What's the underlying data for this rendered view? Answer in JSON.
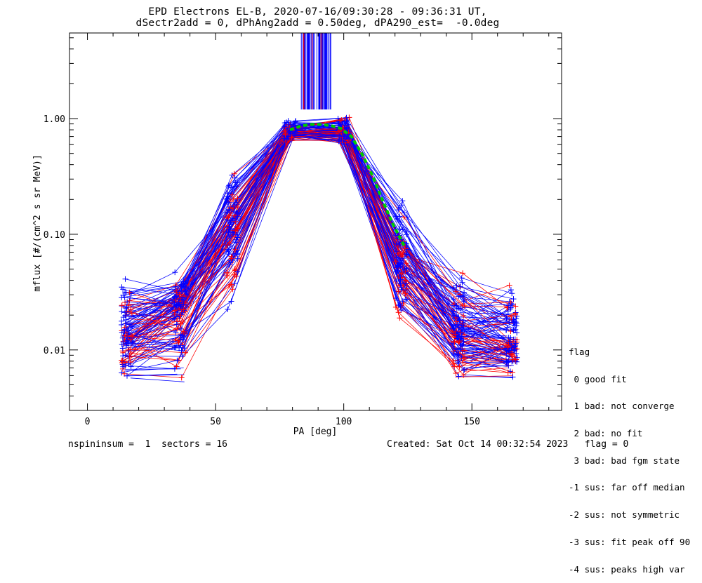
{
  "title_line1": "EPD Electrons EL-B, 2020-07-16/09:30:28 - 09:36:31 UT,",
  "title_line2": "dSectr2add = 0, dPhAng2add = 0.50deg, dPA290_est=  -0.0deg",
  "footer_left": "nspininsum =  1  sectors = 16",
  "footer_right": "Created: Sat Oct 14 00:32:54 2023   flag = 0",
  "legend": {
    "title": "flag",
    "items": [
      " 0 good fit",
      " 1 bad: not converge",
      " 2 bad: no fit",
      " 3 bad: bad fgm state",
      "-1 sus: far off median",
      "-2 sus: not symmetric",
      "-3 sus: fit peak off 90",
      "-4 sus: peaks high var"
    ]
  },
  "colors": {
    "series_a": "#0000ff",
    "series_b": "#ff0000",
    "fit": "#00cc00",
    "axes": "#000000"
  },
  "chart_data": {
    "type": "line",
    "xlabel": "PA [deg]",
    "ylabel": "mflux [#/(cm^2 s sr MeV)]",
    "xlim": [
      -7,
      185
    ],
    "ylim": [
      0.003,
      5.5
    ],
    "yscale": "log",
    "xticks": [
      0,
      50,
      100,
      150
    ],
    "xtick_labels": [
      "0",
      "50",
      "100",
      "150"
    ],
    "yticks": [
      0.01,
      0.1,
      1.0
    ],
    "ytick_labels": [
      "0.01",
      "0.10",
      "1.00"
    ],
    "grid": false,
    "pa_bins": [
      15.5,
      36,
      56.5,
      79,
      100,
      122.5,
      145,
      165.5
    ],
    "profile_median": [
      0.013,
      0.024,
      0.13,
      0.78,
      0.76,
      0.055,
      0.012,
      0.012
    ],
    "profile_low": [
      0.0055,
      0.0055,
      0.022,
      0.62,
      0.6,
      0.016,
      0.0055,
      0.0055
    ],
    "profile_high": [
      0.046,
      0.05,
      0.37,
      0.98,
      1.05,
      0.26,
      0.053,
      0.04
    ],
    "fit_curve": {
      "name": "",
      "x": [
        79,
        83,
        87,
        91,
        95,
        99,
        103,
        107,
        111,
        115,
        119,
        123.5
      ],
      "y": [
        0.8,
        0.86,
        0.89,
        0.89,
        0.87,
        0.82,
        0.7,
        0.5,
        0.33,
        0.2,
        0.125,
        0.08
      ]
    },
    "vertical_markers": {
      "x_range": [
        82,
        95
      ],
      "y_range": [
        1.2,
        5.5
      ]
    }
  }
}
